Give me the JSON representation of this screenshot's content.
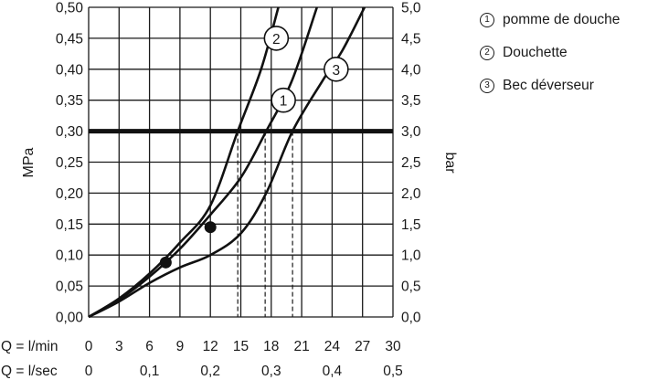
{
  "chart_data": {
    "type": "line",
    "y_left_label": "MPa",
    "y_right_label": "bar",
    "y_left_ticks": [
      "0,00",
      "0,05",
      "0,10",
      "0,15",
      "0,20",
      "0,25",
      "0,30",
      "0,35",
      "0,40",
      "0,45",
      "0,50"
    ],
    "y_right_ticks": [
      "0,0",
      "0,5",
      "1,0",
      "1,5",
      "2,0",
      "2,5",
      "3,0",
      "3,5",
      "4,0",
      "4,5",
      "5,0"
    ],
    "ylim": [
      0,
      0.5
    ],
    "xlim": [
      0,
      30
    ],
    "x_row1_label": "Q = l/min",
    "x_row1_ticks": [
      "0",
      "3",
      "6",
      "9",
      "12",
      "15",
      "18",
      "21",
      "24",
      "27",
      "30"
    ],
    "x_row2_label": "Q = l/sec",
    "x_row2_ticks": [
      {
        "x": 0,
        "label": "0"
      },
      {
        "x": 6,
        "label": "0,1"
      },
      {
        "x": 12,
        "label": "0,2"
      },
      {
        "x": 18,
        "label": "0,3"
      },
      {
        "x": 24,
        "label": "0,4"
      },
      {
        "x": 30,
        "label": "0,5"
      }
    ],
    "reference_line": {
      "y": 0.3
    },
    "series": [
      {
        "name": "1",
        "x": [
          0,
          3,
          6,
          9,
          12,
          15,
          17.5,
          20,
          22.5
        ],
        "y": [
          0,
          0.028,
          0.065,
          0.11,
          0.165,
          0.225,
          0.3,
          0.38,
          0.5
        ],
        "marker": {
          "x": 7.6,
          "y": 0.088
        },
        "label_at": {
          "x": 19.2,
          "y": 0.35
        },
        "drop_at_x": 17.4
      },
      {
        "name": "2",
        "x": [
          0,
          3,
          6,
          9,
          12,
          14.7,
          17,
          18.7
        ],
        "y": [
          0,
          0.03,
          0.07,
          0.12,
          0.18,
          0.3,
          0.4,
          0.5
        ],
        "marker": {
          "x": 12,
          "y": 0.145
        },
        "label_at": {
          "x": 18.5,
          "y": 0.45
        },
        "drop_at_x": 14.7
      },
      {
        "name": "3",
        "x": [
          0,
          3,
          6,
          9,
          12,
          15,
          17.5,
          20.1,
          23,
          25,
          27.2
        ],
        "y": [
          0,
          0.025,
          0.055,
          0.08,
          0.1,
          0.135,
          0.2,
          0.3,
          0.38,
          0.43,
          0.5
        ],
        "label_at": {
          "x": 24.4,
          "y": 0.4
        },
        "drop_at_x": 20.1
      }
    ],
    "grid": true
  },
  "legend": [
    {
      "num": "1",
      "label": "pomme de douche"
    },
    {
      "num": "2",
      "label": "Douchette"
    },
    {
      "num": "3",
      "label": "Bec déverseur"
    }
  ]
}
